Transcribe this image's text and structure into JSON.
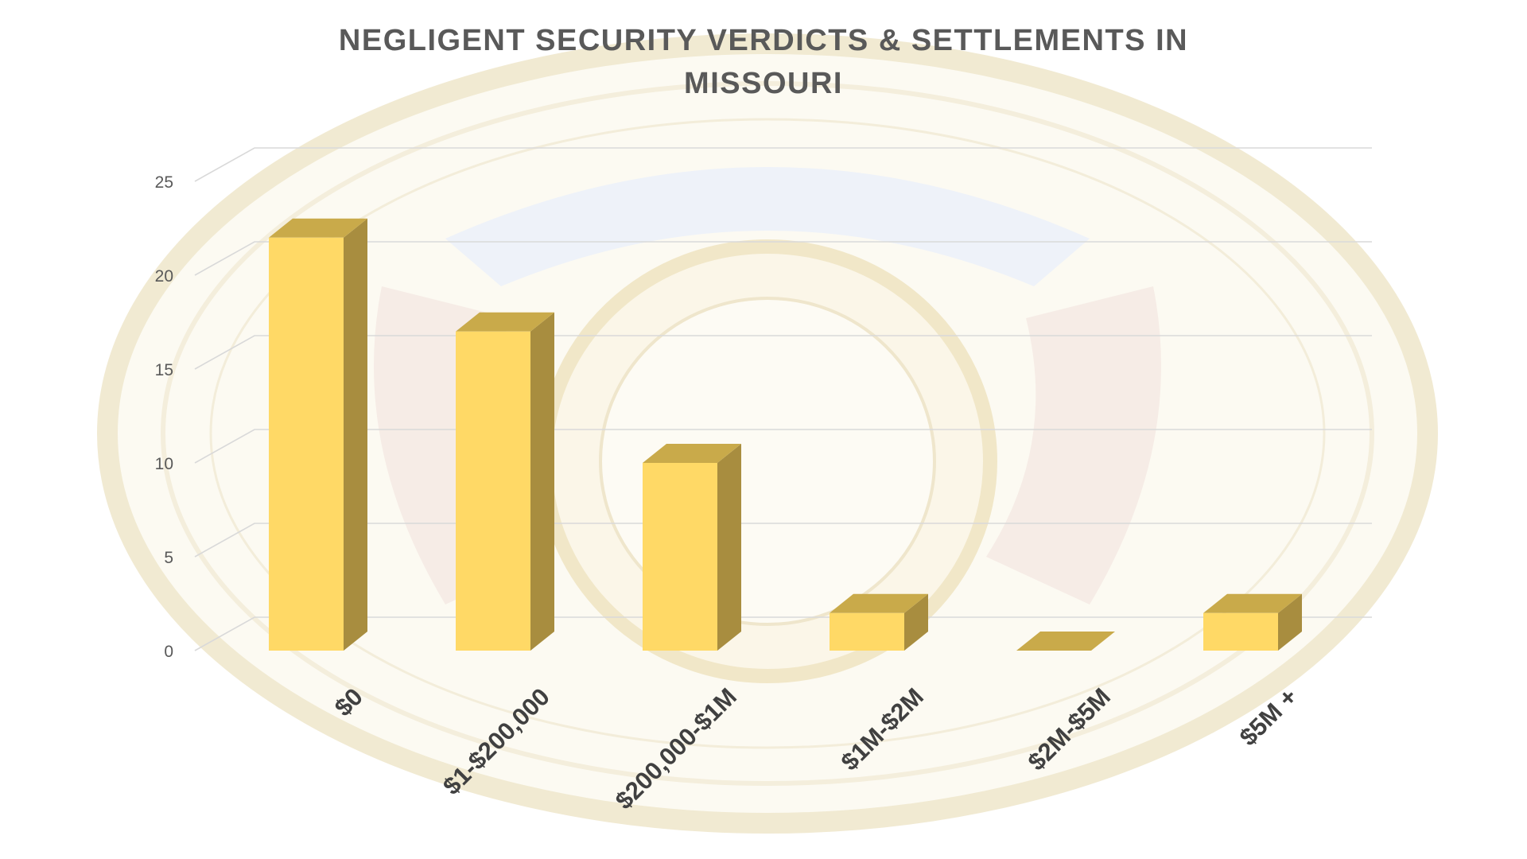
{
  "chart_data": {
    "type": "bar",
    "title": "NEGLIGENT SECURITY VERDICTS & SETTLEMENTS IN MISSOURI",
    "categories": [
      "$0",
      "$1-$200,000",
      "$200,000-$1M",
      "$1M-$2M",
      "$2M-$5M",
      "$5M +"
    ],
    "values": [
      22,
      17,
      10,
      2,
      0,
      2
    ],
    "ylim": [
      0,
      25
    ],
    "yticks": [
      "0",
      "5",
      "10",
      "15",
      "20",
      "25"
    ],
    "xlabel": "",
    "ylabel": "",
    "grid": true,
    "style": "3d",
    "colors": {
      "bar_front": "#FFD966",
      "bar_top": "#C9AA4A",
      "bar_side": "#A88D3F",
      "grid": "#D9D9D9",
      "title": "#595959"
    }
  }
}
